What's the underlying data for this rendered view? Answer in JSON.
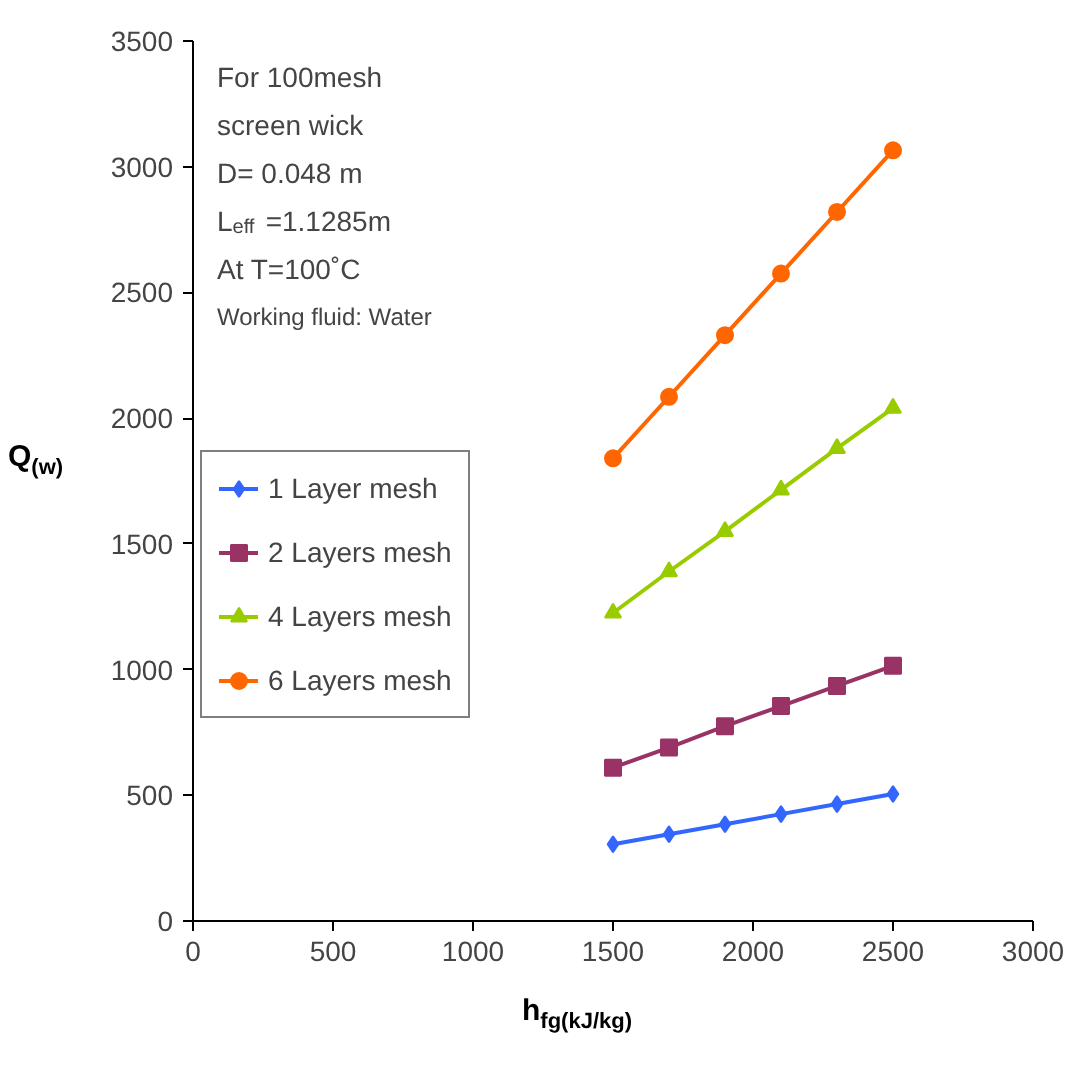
{
  "chart_data": {
    "type": "line",
    "xlabel": "h$_{fg(kJ/kg)}$",
    "ylabel": "Q$_{(w)}$",
    "annotations": [
      "For 100mesh screen wick",
      "D= 0.048 m",
      "L$_{eff}$ =1.1285m",
      "At T=100˚C",
      "Working fluid: Water"
    ],
    "x": [
      1500,
      1700,
      1900,
      2100,
      2300,
      2500
    ],
    "series": [
      {
        "name": "1 Layer mesh",
        "color": "#3366ff",
        "marker": "diamond",
        "values": [
          305,
          345,
          385,
          425,
          465,
          505
        ]
      },
      {
        "name": "2 Layers mesh",
        "color": "#993366",
        "marker": "square",
        "values": [
          610,
          690,
          775,
          855,
          935,
          1015
        ]
      },
      {
        "name": "4 Layers mesh",
        "color": "#99cc00",
        "marker": "triangle",
        "values": [
          1225,
          1390,
          1550,
          1715,
          1880,
          2040
        ]
      },
      {
        "name": "6 Layers mesh",
        "color": "#ff6600",
        "marker": "circle",
        "values": [
          1840,
          2085,
          2330,
          2575,
          2820,
          3065
        ]
      }
    ],
    "xlim": [
      0,
      3000
    ],
    "xticks": [
      0,
      500,
      1000,
      1500,
      2000,
      2500,
      3000
    ],
    "ylim": [
      0,
      3500
    ],
    "yticks": [
      0,
      500,
      1000,
      1500,
      2000,
      2500,
      3000,
      3500
    ],
    "grid": false,
    "legend": "left",
    "line_style": "solid"
  }
}
